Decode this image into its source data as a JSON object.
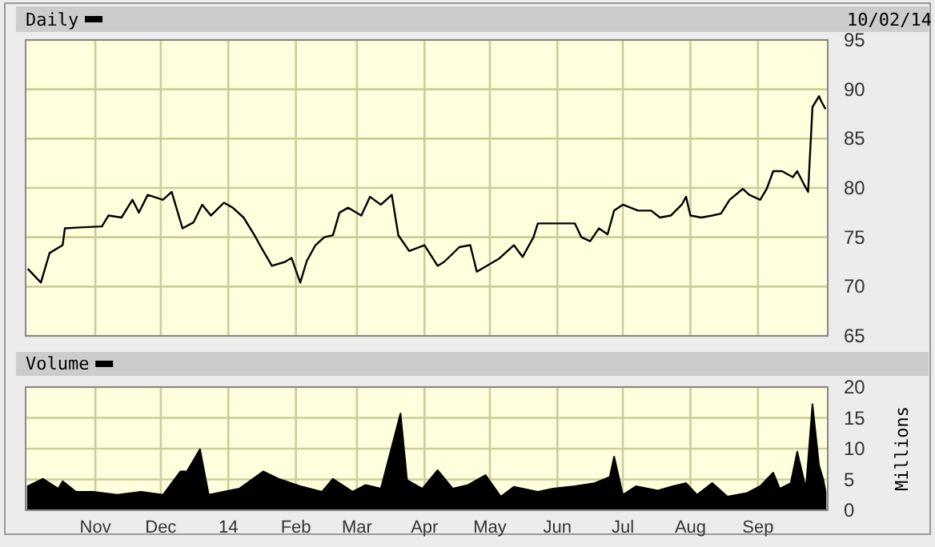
{
  "chart_data": [
    {
      "type": "line",
      "title": "Daily",
      "annotations": [
        "10/02/14"
      ],
      "grid": true,
      "tick_labels": "y",
      "line_style": "solid",
      "marker": "none",
      "xlim": [
        "2013-09-30",
        "2014-10-03"
      ],
      "xticks": [
        {
          "value": "2013-11-01",
          "label": null
        },
        {
          "value": "2013-12-01",
          "label": null
        },
        {
          "value": "2014-01-01",
          "label": null
        },
        {
          "value": "2014-02-01",
          "label": null
        },
        {
          "value": "2014-03-01",
          "label": null
        },
        {
          "value": "2014-04-01",
          "label": null
        },
        {
          "value": "2014-05-01",
          "label": null
        },
        {
          "value": "2014-06-01",
          "label": null
        },
        {
          "value": "2014-07-01",
          "label": null
        },
        {
          "value": "2014-08-01",
          "label": null
        },
        {
          "value": "2014-09-01",
          "label": null
        }
      ],
      "ylim": [
        65,
        95
      ],
      "yticks": [
        65,
        70,
        75,
        80,
        85,
        90,
        95
      ],
      "series": [
        {
          "color": "#000000",
          "x": [
            "2013-10-01",
            "2013-10-07",
            "2013-10-11",
            "2013-10-17",
            "2013-10-18",
            "2013-10-25",
            "2013-11-04",
            "2013-11-07",
            "2013-11-13",
            "2013-11-18",
            "2013-11-21",
            "2013-11-25",
            "2013-12-02",
            "2013-12-06",
            "2013-12-11",
            "2013-12-16",
            "2013-12-20",
            "2013-12-24",
            "2013-12-30",
            "2014-01-03",
            "2014-01-08",
            "2014-01-13",
            "2014-01-16",
            "2014-01-21",
            "2014-01-27",
            "2014-01-30",
            "2014-02-03",
            "2014-02-06",
            "2014-02-10",
            "2014-02-14",
            "2014-02-18",
            "2014-02-21",
            "2014-02-25",
            "2014-03-03",
            "2014-03-07",
            "2014-03-12",
            "2014-03-17",
            "2014-03-20",
            "2014-03-25",
            "2014-04-01",
            "2014-04-07",
            "2014-04-10",
            "2014-04-17",
            "2014-04-22",
            "2014-04-25",
            "2014-05-05",
            "2014-05-12",
            "2014-05-16",
            "2014-05-21",
            "2014-05-23",
            "2014-06-02",
            "2014-06-09",
            "2014-06-12",
            "2014-06-16",
            "2014-06-20",
            "2014-06-24",
            "2014-06-27",
            "2014-07-01",
            "2014-07-08",
            "2014-07-14",
            "2014-07-18",
            "2014-07-23",
            "2014-07-28",
            "2014-07-30",
            "2014-08-01",
            "2014-08-06",
            "2014-08-11",
            "2014-08-15",
            "2014-08-19",
            "2014-08-25",
            "2014-08-28",
            "2014-09-02",
            "2014-09-05",
            "2014-09-08",
            "2014-09-12",
            "2014-09-17",
            "2014-09-19",
            "2014-09-22",
            "2014-09-24",
            "2014-09-26",
            "2014-09-29",
            "2014-09-30",
            "2014-10-02"
          ],
          "values": [
            71.8,
            70.4,
            73.4,
            74.2,
            75.9,
            76,
            76.1,
            77.2,
            77,
            78.8,
            77.5,
            79.3,
            78.8,
            79.6,
            75.9,
            76.5,
            78.3,
            77.2,
            78.5,
            78,
            77,
            75.2,
            74,
            72.1,
            72.5,
            72.9,
            70.4,
            72.6,
            74.2,
            75,
            75.2,
            77.5,
            78,
            77.2,
            79.1,
            78.3,
            79.3,
            75.2,
            73.6,
            74.2,
            72.1,
            72.5,
            74,
            74.2,
            71.5,
            72.8,
            74.2,
            73,
            75,
            76.4,
            76.4,
            76.4,
            75,
            74.6,
            75.9,
            75.3,
            77.7,
            78.3,
            77.7,
            77.7,
            77,
            77.2,
            78.3,
            79.1,
            77.2,
            77,
            77.2,
            77.4,
            78.8,
            79.9,
            79.3,
            78.8,
            79.9,
            81.7,
            81.7,
            81.1,
            81.7,
            80.4,
            79.6,
            88.2,
            89.3,
            88.8,
            88
          ]
        }
      ]
    },
    {
      "type": "area",
      "title": "Volume",
      "ylabel": "Millions",
      "grid": true,
      "xlim": [
        "2013-09-30",
        "2014-10-03"
      ],
      "xticks": [
        {
          "value": "2013-11-01",
          "label": "Nov"
        },
        {
          "value": "2013-12-01",
          "label": "Dec"
        },
        {
          "value": "2014-01-01",
          "label": "14"
        },
        {
          "value": "2014-02-01",
          "label": "Feb"
        },
        {
          "value": "2014-03-01",
          "label": "Mar"
        },
        {
          "value": "2014-04-01",
          "label": "Apr"
        },
        {
          "value": "2014-05-01",
          "label": "May"
        },
        {
          "value": "2014-06-01",
          "label": "Jun"
        },
        {
          "value": "2014-07-01",
          "label": "Jul"
        },
        {
          "value": "2014-08-01",
          "label": "Aug"
        },
        {
          "value": "2014-09-01",
          "label": "Sep"
        }
      ],
      "ylim": [
        0,
        20
      ],
      "yticks": [
        0,
        5,
        10,
        15,
        20
      ],
      "series": [
        {
          "color": "#000000",
          "x": [
            "2013-10-01",
            "2013-10-08",
            "2013-10-15",
            "2013-10-17",
            "2013-10-23",
            "2013-10-31",
            "2013-11-11",
            "2013-11-22",
            "2013-12-02",
            "2013-12-10",
            "2013-12-13",
            "2013-12-19",
            "2013-12-23",
            "2014-01-06",
            "2014-01-17",
            "2014-01-24",
            "2014-02-03",
            "2014-02-13",
            "2014-02-18",
            "2014-02-27",
            "2014-03-05",
            "2014-03-12",
            "2014-03-21",
            "2014-03-24",
            "2014-03-31",
            "2014-04-07",
            "2014-04-14",
            "2014-04-21",
            "2014-04-29",
            "2014-05-06",
            "2014-05-12",
            "2014-05-23",
            "2014-05-30",
            "2014-06-09",
            "2014-06-18",
            "2014-06-25",
            "2014-06-27",
            "2014-07-01",
            "2014-07-07",
            "2014-07-17",
            "2014-07-24",
            "2014-07-30",
            "2014-08-04",
            "2014-08-11",
            "2014-08-18",
            "2014-08-27",
            "2014-09-02",
            "2014-09-08",
            "2014-09-11",
            "2014-09-16",
            "2014-09-19",
            "2014-09-23",
            "2014-09-26",
            "2014-09-29",
            "2014-10-01",
            "2014-10-02"
          ],
          "values": [
            3.9,
            5.1,
            3.5,
            4.7,
            3,
            3,
            2.5,
            3,
            2.5,
            6.3,
            6.3,
            9.9,
            2.5,
            3.5,
            6.3,
            5.1,
            3.9,
            3,
            5.1,
            3,
            4.1,
            3.5,
            15.7,
            4.9,
            3.5,
            6.5,
            3.5,
            4.1,
            5.7,
            2.2,
            3.8,
            3,
            3.5,
            3.9,
            4.4,
            5.4,
            8.7,
            2.5,
            3.9,
            3.2,
            3.9,
            4.4,
            2.5,
            4.4,
            2.2,
            2.8,
            3.9,
            6.1,
            3.5,
            4.4,
            9.5,
            3.5,
            17.2,
            7.3,
            4.9,
            3
          ]
        }
      ]
    }
  ]
}
